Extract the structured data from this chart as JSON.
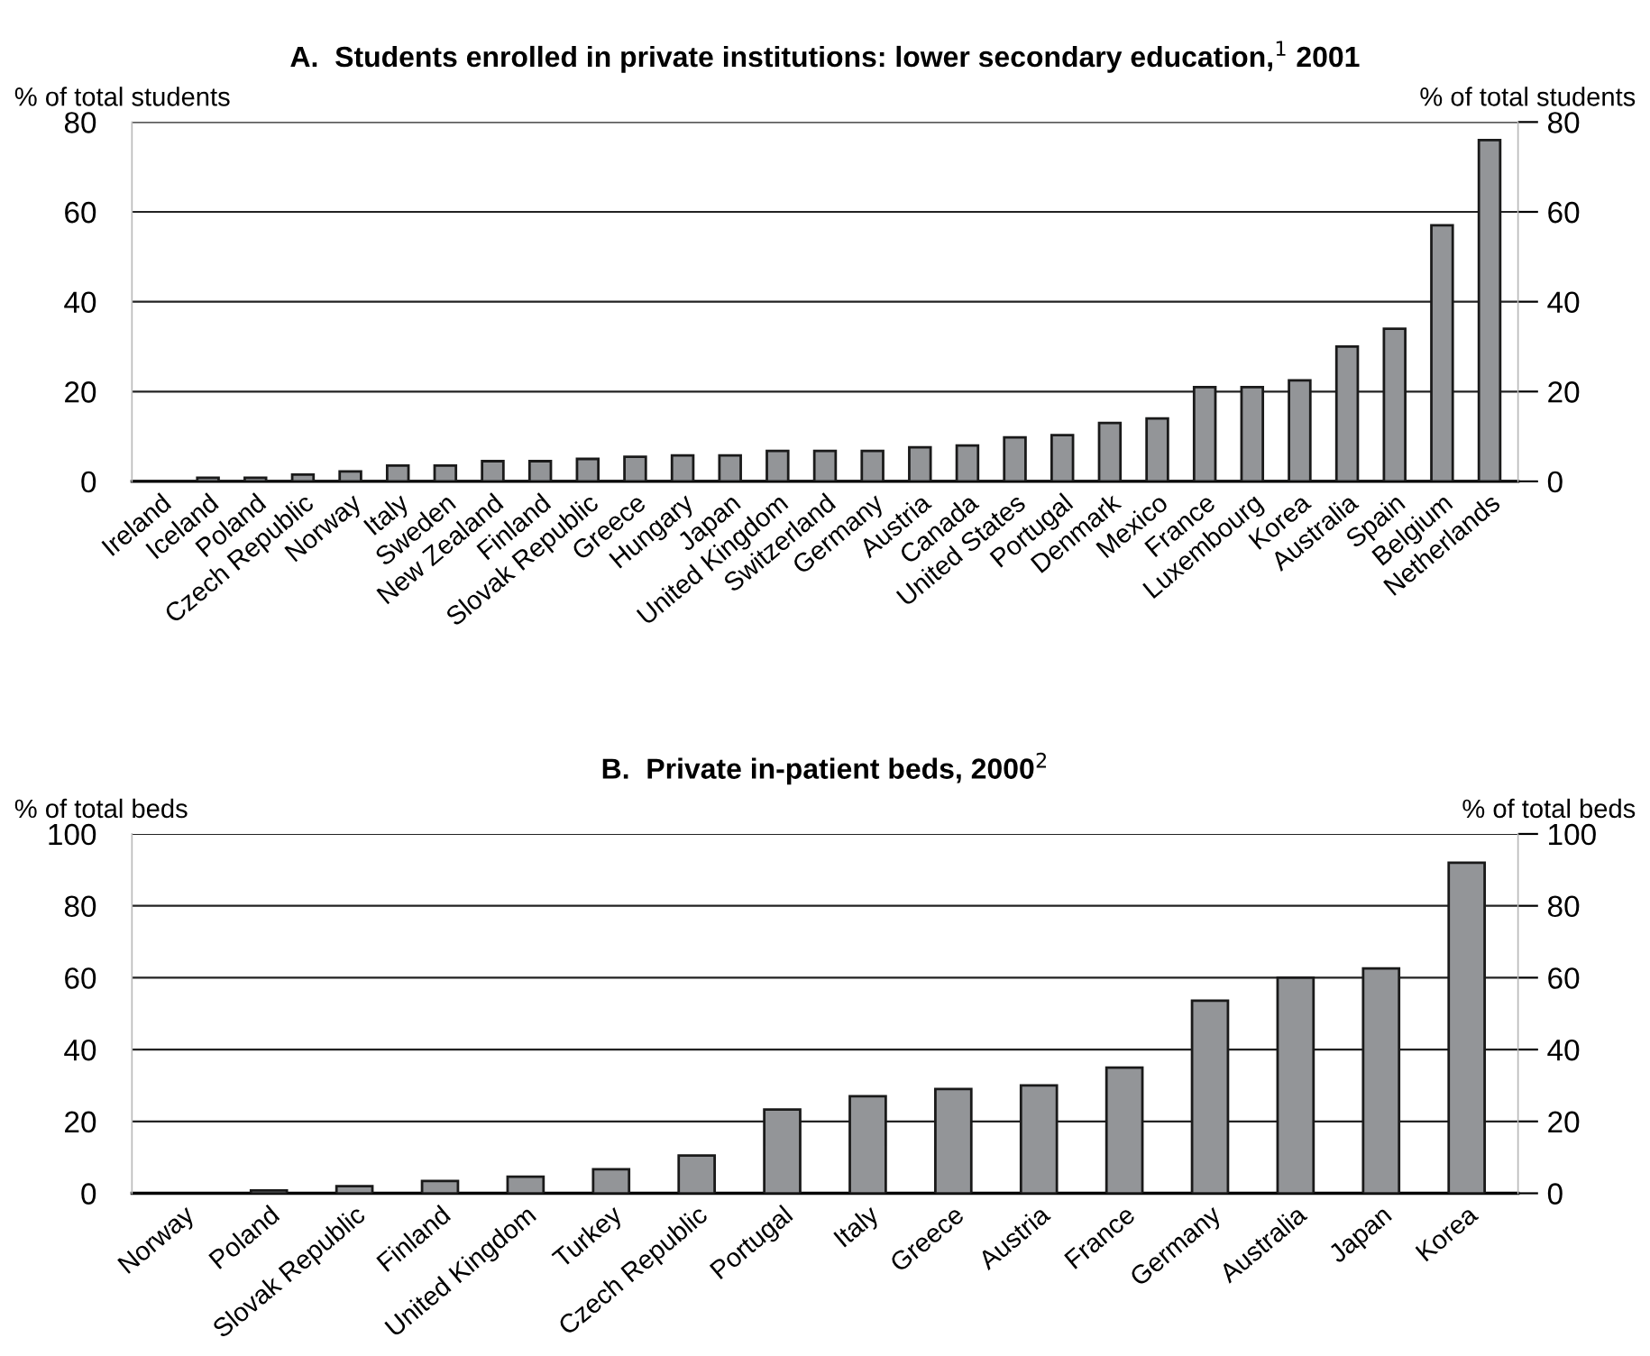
{
  "chart_data": [
    {
      "type": "bar",
      "title": "A.  Students enrolled in private institutions: lower secondary education,$^{1}$ 2001",
      "ylabel": "% of total students",
      "y2label": "% of total students",
      "categories": [
        "Ireland",
        "Iceland",
        "Poland",
        "Czech Republic",
        "Norway",
        "Italy",
        "Sweden",
        "New Zealand",
        "Finland",
        "Slovak Republic",
        "Greece",
        "Hungary",
        "Japan",
        "United Kingdom",
        "Switzerland",
        "Germany",
        "Austria",
        "Canada",
        "United States",
        "Portugal",
        "Denmark",
        "Mexico",
        "France",
        "Luxembourg",
        "Korea",
        "Australia",
        "Spain",
        "Belgium",
        "Netherlands"
      ],
      "series": [
        {
          "color": "#939598",
          "values": [
            0,
            0.8,
            0.8,
            1.5,
            2.2,
            3.5,
            3.5,
            4.5,
            4.5,
            5,
            5.5,
            5.8,
            5.8,
            6.8,
            6.8,
            6.8,
            7.6,
            8,
            9.8,
            10.3,
            13,
            14,
            21,
            21,
            22.5,
            30,
            34,
            57,
            76
          ]
        }
      ],
      "ylim": [
        0,
        80
      ],
      "yticks": [
        0,
        20,
        40,
        60,
        80
      ],
      "y2lim": [
        0,
        80
      ],
      "y2ticks": [
        0,
        20,
        40,
        60,
        80
      ],
      "grid": "y"
    },
    {
      "type": "bar",
      "title": "B.  Private in-patient beds, 2000$^{2}$",
      "ylabel": "% of total beds",
      "y2label": "% of total beds",
      "categories": [
        "Norway",
        "Poland",
        "Slovak Republic",
        "Finland",
        "United Kingdom",
        "Turkey",
        "Czech Republic",
        "Portugal",
        "Italy",
        "Greece",
        "Austria",
        "France",
        "Germany",
        "Australia",
        "Japan",
        "Korea"
      ],
      "series": [
        {
          "color": "#939598",
          "values": [
            0,
            0.8,
            2,
            3.4,
            4.6,
            6.7,
            10.5,
            23.3,
            27,
            29,
            30,
            35,
            53.6,
            60,
            62.6,
            92
          ]
        }
      ],
      "ylim": [
        0,
        100
      ],
      "yticks": [
        0,
        20,
        40,
        60,
        80,
        100
      ],
      "y2lim": [
        0,
        100
      ],
      "y2ticks": [
        0,
        20,
        40,
        60,
        80,
        100
      ],
      "grid": "y"
    }
  ]
}
